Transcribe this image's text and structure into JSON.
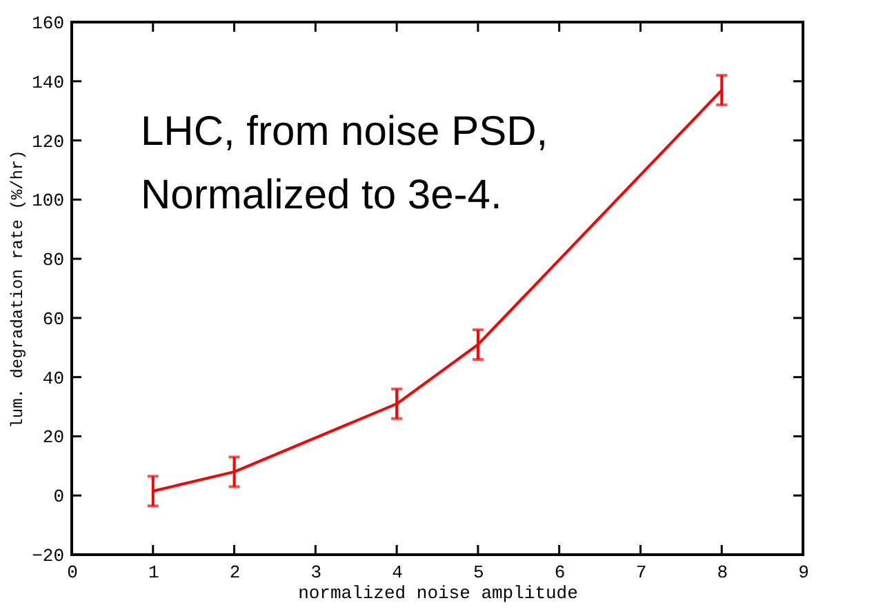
{
  "chart_data": {
    "type": "line",
    "xlabel": "normalized noise amplitude",
    "ylabel": "lum. degradation rate (%/hr)",
    "x": [
      1,
      2,
      4,
      5,
      8
    ],
    "series": [
      {
        "color": "#ff0000",
        "values": [
          1.5,
          8,
          31,
          51,
          137
        ],
        "errors": [
          5,
          5,
          5,
          5,
          5
        ]
      }
    ],
    "xlim": [
      0,
      9
    ],
    "xticks": [
      0,
      1,
      2,
      3,
      4,
      5,
      6,
      7,
      8,
      9
    ],
    "ylim": [
      -20,
      160
    ],
    "yticks": [
      -20,
      0,
      20,
      40,
      60,
      80,
      100,
      120,
      140,
      160
    ],
    "grid": false,
    "marker": "none",
    "line_style": "solid",
    "annotations": [
      "LHC, from noise PSD,\nNormalized to 3e-4."
    ]
  }
}
